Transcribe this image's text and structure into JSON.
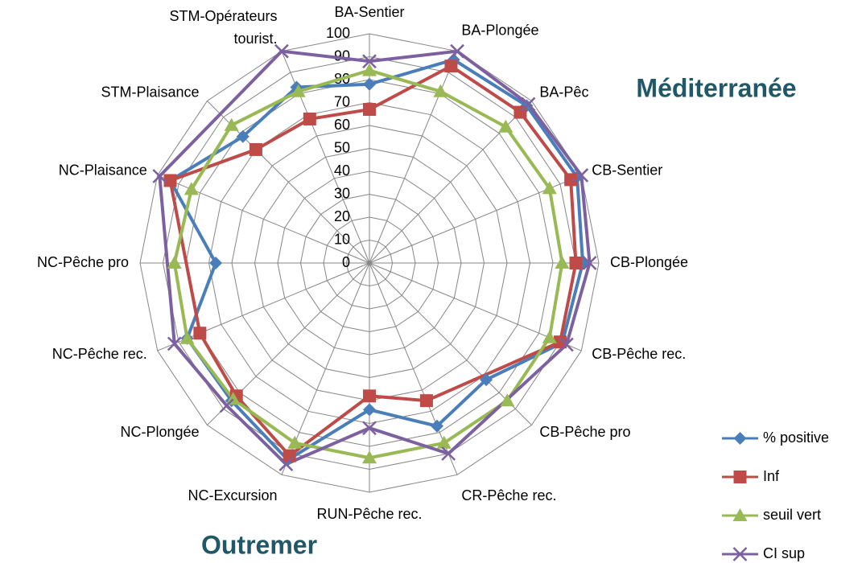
{
  "chart_data": {
    "type": "radar",
    "categories": [
      "BA-Sentier",
      "BA-Plongée",
      "BA-Pêc",
      "CB-Sentier",
      "CB-Plongée",
      "CB-Pêche rec.",
      "CB-Pêche pro",
      "CR-Pêche rec.",
      "RUN-Pêche rec.",
      "NC-Excursion",
      "NC-Plongée",
      "NC-Pêche rec.",
      "NC-Pêche pro",
      "NC-Plaisance",
      "STM-Plaisance",
      "STM-Opérateurs tourist."
    ],
    "series": [
      {
        "name": "% positive",
        "color": "#4a7ebb",
        "marker": "diamond",
        "values": [
          78,
          96,
          97,
          98,
          93,
          91,
          72,
          77,
          64,
          93,
          85,
          86,
          67,
          94,
          78,
          83
        ]
      },
      {
        "name": "Inf",
        "color": "#be4b48",
        "marker": "square",
        "values": [
          67,
          93,
          93,
          95,
          90,
          90,
          null,
          65,
          58,
          91,
          82,
          80,
          null,
          94,
          70,
          68
        ]
      },
      {
        "name": "seuil vert",
        "color": "#98b954",
        "marker": "triangle",
        "values": [
          84,
          81,
          84,
          85,
          84,
          85,
          85,
          85,
          85,
          85,
          84,
          86,
          85,
          84,
          85,
          81
        ]
      },
      {
        "name": "CI sup",
        "color": "#7d60a0",
        "marker": "x",
        "values": [
          88,
          100,
          98,
          100,
          96,
          93,
          null,
          90,
          72,
          95,
          88,
          92,
          null,
          99,
          null,
          100
        ]
      }
    ],
    "rlim": [
      0,
      100
    ],
    "rticks": [
      0,
      10,
      20,
      30,
      40,
      50,
      60,
      70,
      80,
      90,
      100
    ],
    "annotations": [
      "Méditerranée",
      "Outremer"
    ],
    "legend": "bottom-right"
  }
}
